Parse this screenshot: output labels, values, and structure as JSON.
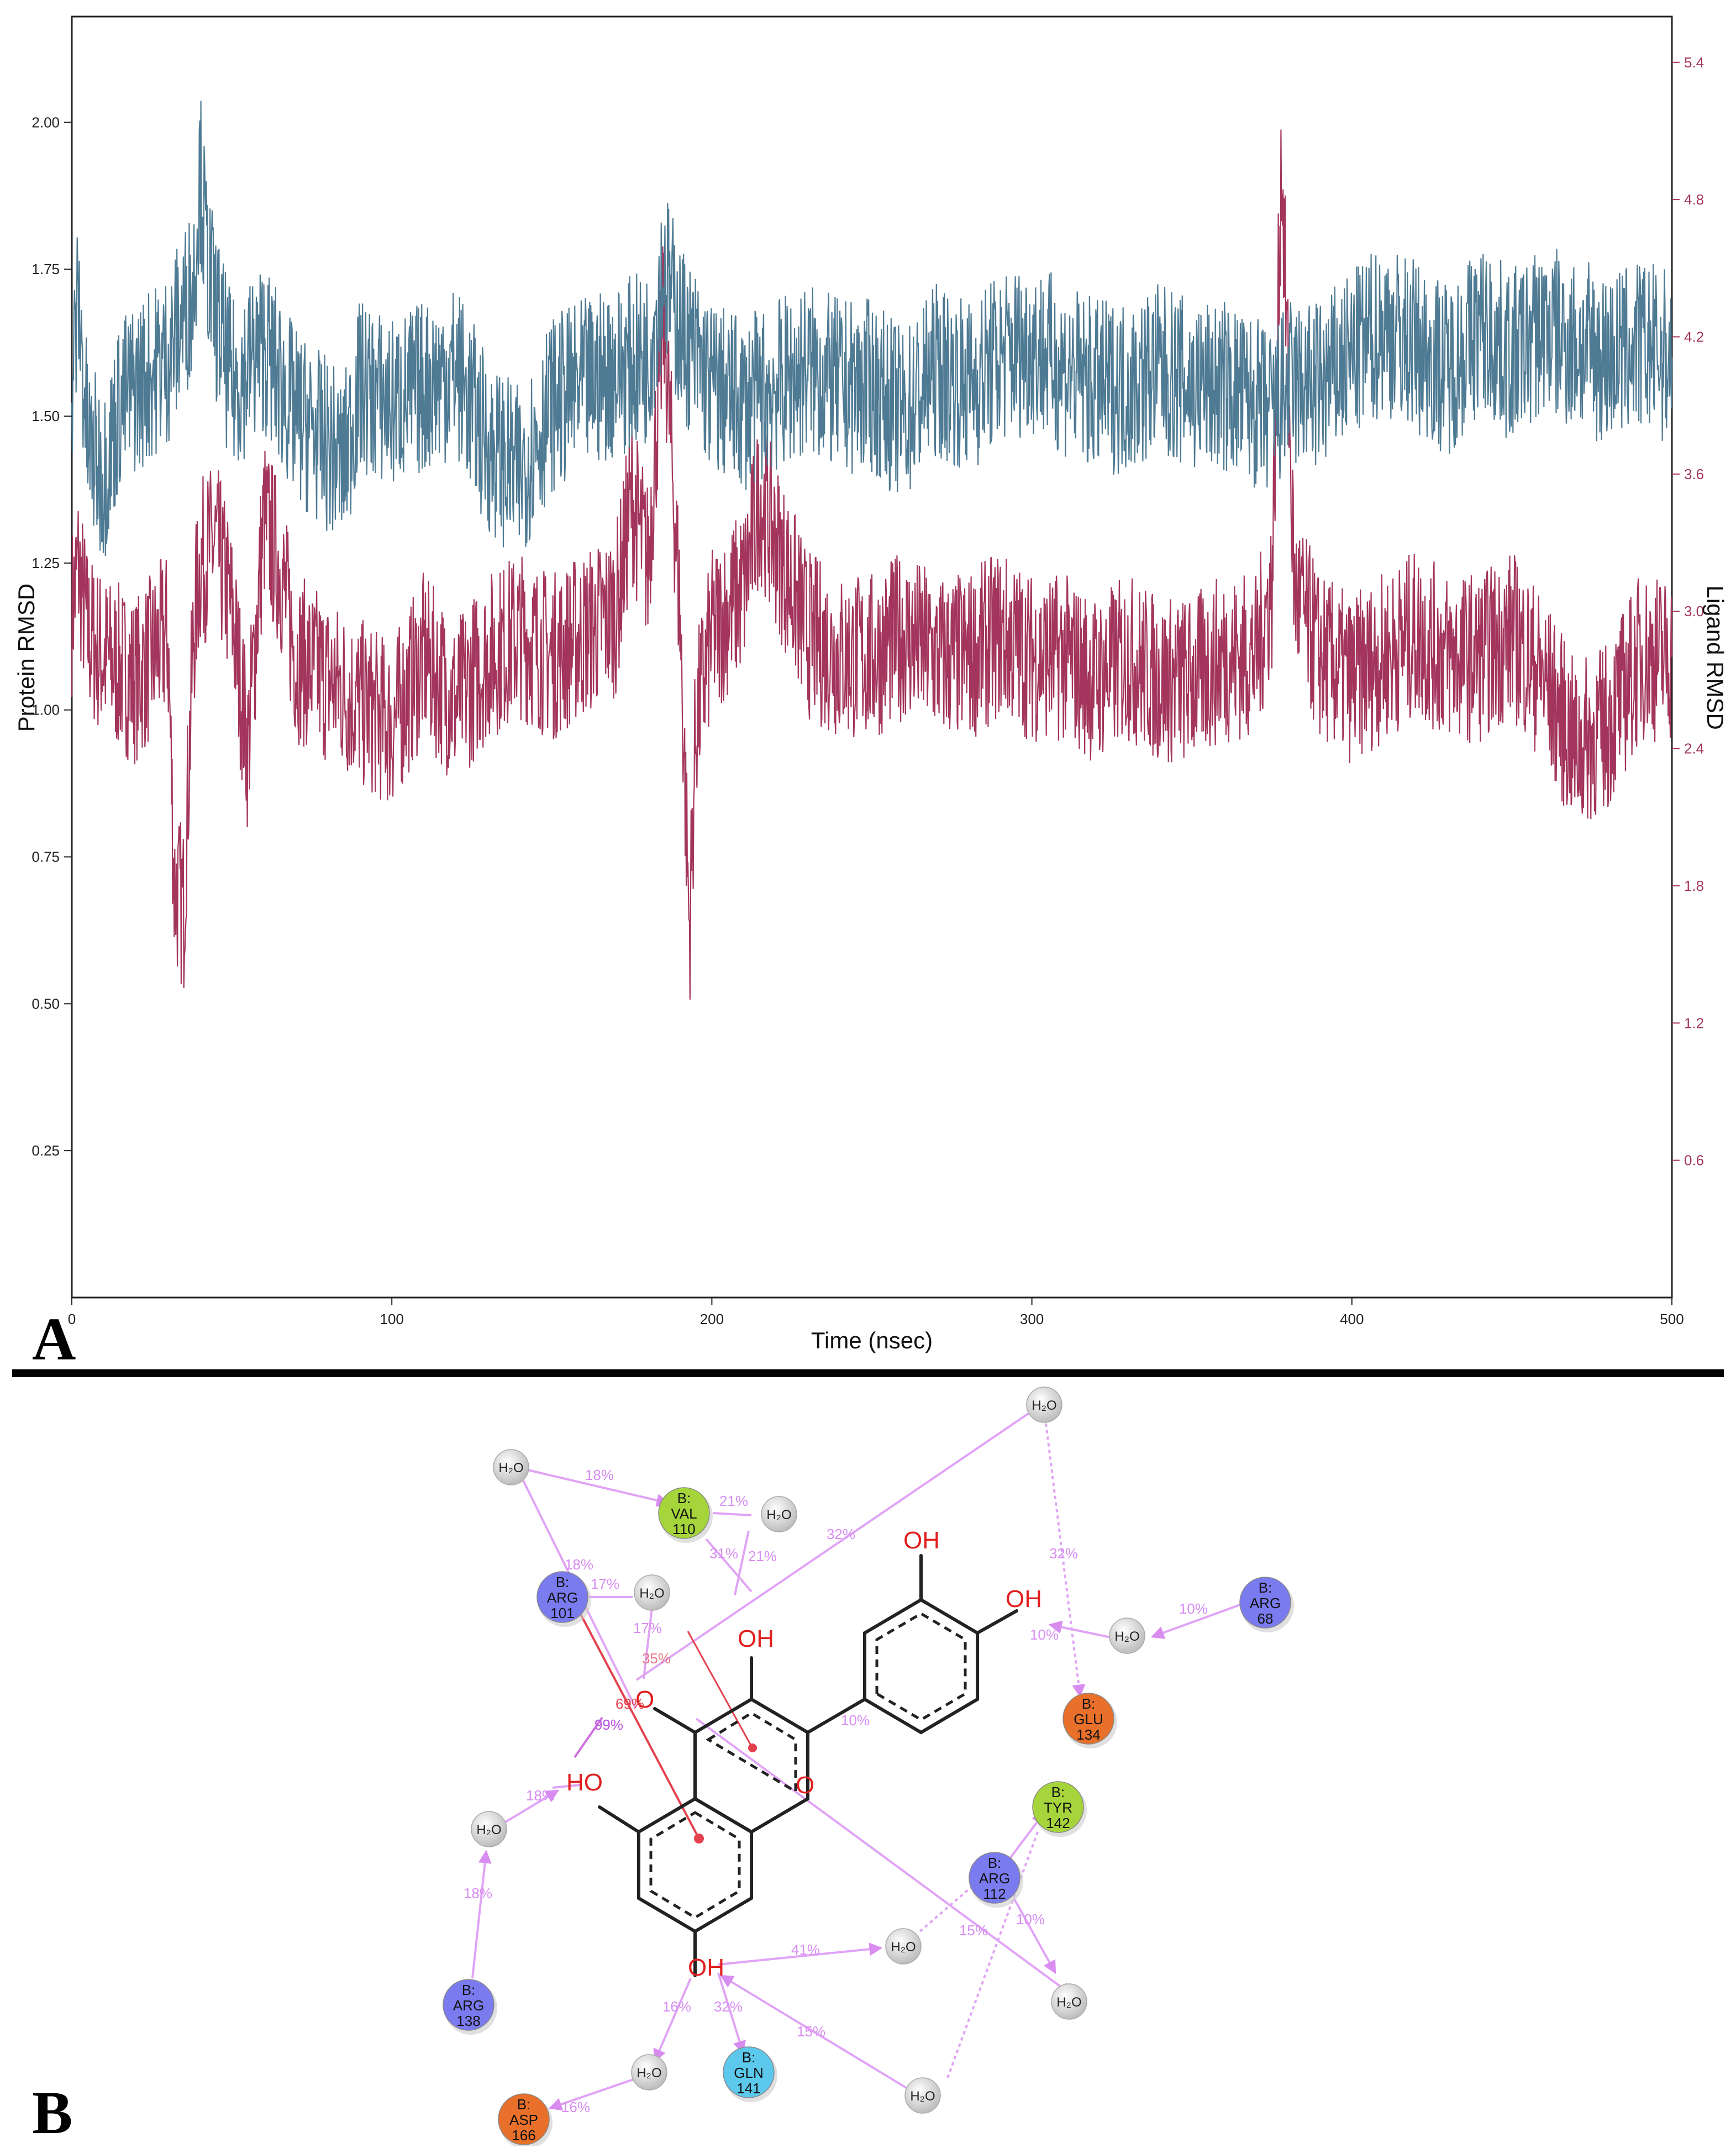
{
  "panel_a": {
    "letter": "A",
    "chart_data": {
      "type": "line",
      "xlabel": "Time (nsec)",
      "ylabel_left": "Protein RMSD",
      "ylabel_right": "Ligand RMSD",
      "xlim": [
        0,
        500
      ],
      "ylim_left": [
        0,
        2.18
      ],
      "ylim_right": [
        0,
        5.6
      ],
      "x_ticks": [
        "0",
        "100",
        "200",
        "300",
        "400",
        "500"
      ],
      "x_tick_values": [
        0,
        100,
        200,
        300,
        400,
        500
      ],
      "y_left_ticks": [
        "0.25",
        "0.50",
        "0.75",
        "1.00",
        "1.25",
        "1.50",
        "1.75",
        "2.00"
      ],
      "y_left_tick_values": [
        0.25,
        0.5,
        0.75,
        1.0,
        1.25,
        1.5,
        1.75,
        2.0
      ],
      "y_right_ticks": [
        "0.6",
        "1.2",
        "1.8",
        "2.4",
        "3.0",
        "3.6",
        "4.2",
        "4.8",
        "5.4"
      ],
      "y_right_tick_values": [
        0.6,
        1.2,
        1.8,
        2.4,
        3.0,
        3.6,
        4.2,
        4.8,
        5.4
      ],
      "grid": false,
      "series": [
        {
          "axis": "left",
          "color": "#4e7a93",
          "x": [
            0,
            2,
            5,
            10,
            15,
            20,
            30,
            38,
            40,
            42,
            44,
            50,
            60,
            70,
            80,
            85,
            90,
            100,
            110,
            120,
            130,
            140,
            150,
            160,
            170,
            180,
            185,
            190,
            200,
            210,
            220,
            230,
            240,
            250,
            260,
            270,
            280,
            290,
            300,
            310,
            320,
            330,
            340,
            350,
            360,
            370,
            375,
            380,
            390,
            400,
            410,
            420,
            430,
            440,
            450,
            460,
            470,
            480,
            490,
            500
          ],
          "values": [
            1.55,
            1.7,
            1.45,
            1.4,
            1.52,
            1.55,
            1.6,
            1.72,
            1.92,
            1.78,
            1.7,
            1.55,
            1.62,
            1.5,
            1.45,
            1.42,
            1.55,
            1.52,
            1.55,
            1.58,
            1.45,
            1.4,
            1.52,
            1.55,
            1.58,
            1.6,
            1.75,
            1.65,
            1.55,
            1.52,
            1.55,
            1.58,
            1.55,
            1.55,
            1.5,
            1.58,
            1.55,
            1.6,
            1.62,
            1.58,
            1.55,
            1.55,
            1.58,
            1.55,
            1.55,
            1.52,
            1.5,
            1.55,
            1.55,
            1.6,
            1.65,
            1.62,
            1.58,
            1.65,
            1.6,
            1.65,
            1.62,
            1.6,
            1.62,
            1.6
          ]
        },
        {
          "axis": "right",
          "color": "#a3355c",
          "x": [
            0,
            2,
            5,
            10,
            20,
            30,
            32,
            35,
            38,
            40,
            45,
            50,
            55,
            60,
            65,
            70,
            80,
            90,
            100,
            110,
            120,
            130,
            140,
            150,
            160,
            170,
            175,
            180,
            185,
            190,
            193,
            195,
            200,
            210,
            215,
            220,
            230,
            240,
            250,
            260,
            270,
            280,
            290,
            300,
            310,
            320,
            330,
            340,
            350,
            360,
            370,
            375,
            378,
            382,
            390,
            400,
            410,
            420,
            430,
            440,
            450,
            460,
            470,
            480,
            490,
            500
          ],
          "values": [
            3.0,
            3.2,
            2.9,
            2.8,
            2.7,
            2.9,
            1.8,
            1.7,
            2.9,
            3.2,
            3.3,
            3.0,
            2.4,
            3.4,
            3.2,
            2.8,
            2.7,
            2.6,
            2.5,
            2.8,
            2.6,
            2.8,
            2.9,
            2.8,
            2.9,
            3.0,
            3.5,
            3.2,
            4.3,
            3.0,
            1.6,
            2.5,
            2.9,
            3.1,
            3.5,
            3.3,
            2.9,
            2.8,
            2.8,
            2.9,
            2.8,
            2.8,
            2.9,
            2.8,
            2.8,
            2.7,
            2.8,
            2.7,
            2.7,
            2.8,
            2.8,
            3.1,
            5.0,
            3.1,
            2.8,
            2.7,
            2.8,
            2.9,
            2.8,
            2.8,
            2.9,
            2.7,
            2.4,
            2.5,
            2.8,
            2.8
          ]
        }
      ]
    }
  },
  "panel_b": {
    "letter": "B",
    "ligand_labels": {
      "oh_3": "OH",
      "oh_3p": "OH",
      "oh_4p": "OH",
      "oh_5": "HO",
      "oh_7": "OH",
      "carbonyl_o": "O",
      "ring_o": "O"
    },
    "residues": [
      {
        "id": "val110",
        "chain": "B:",
        "name": "VAL",
        "num": "110",
        "color": "#a5d43b"
      },
      {
        "id": "arg101",
        "chain": "B:",
        "name": "ARG",
        "num": "101",
        "color": "#7b7bf0"
      },
      {
        "id": "arg68",
        "chain": "B:",
        "name": "ARG",
        "num": "68",
        "color": "#7b7bf0"
      },
      {
        "id": "glu134",
        "chain": "B:",
        "name": "GLU",
        "num": "134",
        "color": "#e8702a"
      },
      {
        "id": "tyr142",
        "chain": "B:",
        "name": "TYR",
        "num": "142",
        "color": "#a5d43b"
      },
      {
        "id": "arg112",
        "chain": "B:",
        "name": "ARG",
        "num": "112",
        "color": "#7b7bf0"
      },
      {
        "id": "arg138",
        "chain": "B:",
        "name": "ARG",
        "num": "138",
        "color": "#7b7bf0"
      },
      {
        "id": "gln141",
        "chain": "B:",
        "name": "GLN",
        "num": "141",
        "color": "#5cc8ec"
      },
      {
        "id": "asp166",
        "chain": "B:",
        "name": "ASP",
        "num": "166",
        "color": "#e8702a"
      }
    ],
    "water_label": "H₂O",
    "interaction_labels": [
      "18%",
      "21%",
      "31%",
      "21%",
      "32%",
      "32%",
      "18%",
      "17%",
      "17%",
      "35%",
      "69%",
      "99%",
      "10%",
      "10%",
      "18%",
      "18%",
      "10%",
      "41%",
      "15%",
      "10%",
      "16%",
      "32%",
      "15%",
      "16%"
    ]
  }
}
